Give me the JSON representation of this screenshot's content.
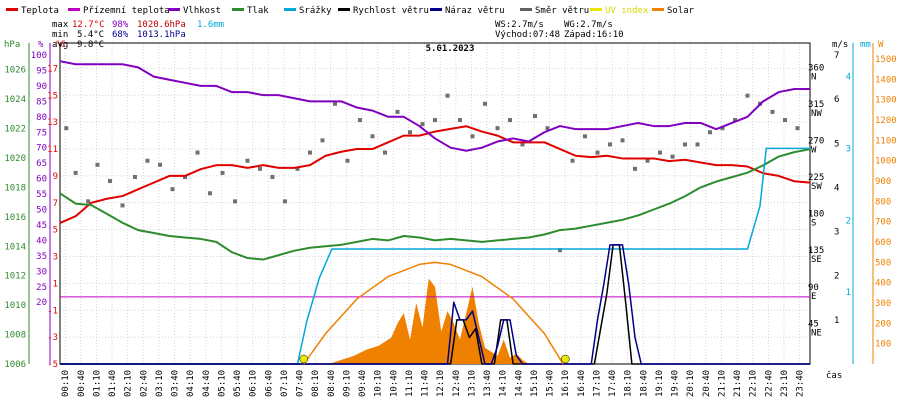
{
  "chart_data": {
    "type": "line",
    "title": "5.01.2023",
    "xlabel": "čas",
    "legend_position": "top",
    "grid": true,
    "legend": [
      {
        "name": "Teplota",
        "color": "#e00000"
      },
      {
        "name": "Přízemní teplota",
        "color": "#c000c0"
      },
      {
        "name": "Vlhkost",
        "color": "#8000c0"
      },
      {
        "name": "Tlak",
        "color": "#2e8b2e"
      },
      {
        "name": "Srážky",
        "color": "#00a8d8"
      },
      {
        "name": "Rychlost větru",
        "color": "#000000"
      },
      {
        "name": "Náraz větru",
        "color": "#00008b"
      },
      {
        "name": "Směr větru",
        "color": "#606060"
      },
      {
        "name": "UV index",
        "color": "#e8e800"
      },
      {
        "name": "Solar",
        "color": "#f08000"
      }
    ],
    "stats": {
      "max_label": "max",
      "min_label": "min",
      "avg_label": "avg",
      "max_temp": "12.7°C",
      "max_hum": "98%",
      "max_press": "1020.6hPa",
      "max_rain": "1.6mm",
      "min_temp": "5.4°C",
      "min_hum": "68%",
      "min_press": "1013.1hPa",
      "avg_temp": "9.8°C"
    },
    "wind_info": {
      "ws": "WS:2.7m/s",
      "wg": "WG:2.7m/s",
      "sunrise": "Východ:07:48",
      "sunset": "Západ:16:10"
    },
    "axes": {
      "pressure": {
        "unit": "hPa",
        "ticks": [
          "1026",
          "1024",
          "1022",
          "1020",
          "1018",
          "1016",
          "1014",
          "1012",
          "1010",
          "1008",
          "1006"
        ],
        "range": [
          1006,
          1027
        ]
      },
      "humidity": {
        "unit": "%",
        "ticks": [
          "100",
          "95",
          "90",
          "85",
          "80",
          "75",
          "70",
          "65",
          "60",
          "55",
          "50",
          "45",
          "40",
          "35",
          "30",
          "25",
          "20"
        ],
        "range": [
          0,
          100
        ]
      },
      "temperature": {
        "unit": "°C",
        "ticks": [
          "17",
          "15",
          "13",
          "11",
          "9",
          "7",
          "5",
          "3",
          "1",
          "-1",
          "-3",
          "-5"
        ],
        "range": [
          -5,
          18
        ]
      },
      "wind_dir": {
        "unit": "",
        "ticks": [
          "360",
          "315",
          "270",
          "225",
          "180",
          "135",
          "90",
          "45"
        ],
        "labels": [
          "N",
          "NW",
          "W",
          "SW",
          "S",
          "SE",
          "E",
          "NE"
        ],
        "range": [
          0,
          380
        ]
      },
      "wind_speed": {
        "unit": "m/s",
        "ticks": [
          "7",
          "6",
          "5",
          "4",
          "3",
          "2",
          "1"
        ],
        "range": [
          0,
          7
        ]
      },
      "rain": {
        "unit": "mm",
        "ticks": [
          "4",
          "3",
          "2",
          "1"
        ],
        "range": [
          0,
          4.3
        ]
      },
      "solar": {
        "unit": "W",
        "ticks": [
          "1500",
          "1400",
          "1300",
          "1200",
          "1100",
          "1000",
          "900",
          "800",
          "700",
          "600",
          "500",
          "400",
          "300",
          "200",
          "100"
        ],
        "range": [
          0,
          1520
        ]
      }
    },
    "x_ticks": [
      "00:10",
      "00:40",
      "01:10",
      "01:40",
      "02:10",
      "02:40",
      "03:10",
      "03:40",
      "04:10",
      "04:40",
      "05:10",
      "05:40",
      "06:10",
      "06:40",
      "07:10",
      "07:40",
      "08:10",
      "08:40",
      "09:10",
      "09:40",
      "10:10",
      "10:40",
      "11:10",
      "11:40",
      "12:10",
      "12:40",
      "13:10",
      "13:40",
      "14:10",
      "14:40",
      "15:10",
      "15:40",
      "16:10",
      "16:40",
      "17:10",
      "17:40",
      "18:10",
      "18:40",
      "19:10",
      "19:40",
      "20:10",
      "20:40",
      "21:10",
      "21:40",
      "22:10",
      "22:40",
      "23:10",
      "23:40"
    ],
    "x_range_hours": [
      0,
      24
    ],
    "series": [
      {
        "name": "Teplota",
        "axis": "temperature",
        "color": "#e00000",
        "x": [
          0,
          0.5,
          1,
          1.5,
          2,
          2.5,
          3,
          3.5,
          4,
          4.5,
          5,
          5.5,
          6,
          6.5,
          7,
          7.5,
          8,
          8.5,
          9,
          9.5,
          10,
          10.5,
          11,
          11.5,
          12,
          12.5,
          13,
          13.5,
          14,
          14.5,
          15,
          15.5,
          16,
          16.5,
          17,
          17.5,
          18,
          18.5,
          19,
          19.5,
          20,
          20.5,
          21,
          21.5,
          22,
          22.5,
          23,
          23.5,
          24
        ],
        "values": [
          5.5,
          6,
          7,
          7.3,
          7.5,
          8,
          8.5,
          9,
          9,
          9.5,
          9.8,
          9.8,
          9.6,
          9.8,
          9.6,
          9.6,
          9.8,
          10.5,
          10.8,
          11,
          11,
          11.5,
          12,
          12,
          12.3,
          12.5,
          12.7,
          12.3,
          12,
          11.5,
          11.5,
          11.5,
          11,
          10.5,
          10.4,
          10.5,
          10.3,
          10.3,
          10.3,
          10.1,
          10.2,
          10,
          9.8,
          9.8,
          9.7,
          9.2,
          9.0,
          8.6,
          8.5
        ]
      },
      {
        "name": "Vlhkost",
        "axis": "humidity",
        "color": "#8000c0",
        "x": [
          0,
          0.5,
          1,
          1.5,
          2,
          2.5,
          3,
          3.5,
          4,
          4.5,
          5,
          5.5,
          6,
          6.5,
          7,
          7.5,
          8,
          8.5,
          9,
          9.5,
          10,
          10.5,
          11,
          11.5,
          12,
          12.5,
          13,
          13.5,
          14,
          14.5,
          15,
          15.5,
          16,
          16.5,
          17,
          17.5,
          18,
          18.5,
          19,
          19.5,
          20,
          20.5,
          21,
          21.5,
          22,
          22.5,
          23,
          23.5,
          24
        ],
        "values": [
          98,
          97,
          97,
          97,
          97,
          96,
          93,
          92,
          91,
          90,
          90,
          88,
          88,
          87,
          87,
          86,
          85,
          85,
          85,
          83,
          82,
          80,
          80,
          77,
          73,
          70,
          69,
          70,
          72,
          73,
          72,
          75,
          77,
          76,
          76,
          76,
          77,
          78,
          77,
          77,
          78,
          78,
          76,
          78,
          80,
          85,
          88,
          89,
          89
        ]
      },
      {
        "name": "Tlak",
        "axis": "pressure",
        "color": "#2e8b2e",
        "x": [
          0,
          0.5,
          1,
          1.5,
          2,
          2.5,
          3,
          3.5,
          4,
          4.5,
          5,
          5.5,
          6,
          6.5,
          7,
          7.5,
          8,
          8.5,
          9,
          9.5,
          10,
          10.5,
          11,
          11.5,
          12,
          12.5,
          13,
          13.5,
          14,
          14.5,
          15,
          15.5,
          16,
          16.5,
          17,
          17.5,
          18,
          18.5,
          19,
          19.5,
          20,
          20.5,
          21,
          21.5,
          22,
          22.5,
          23,
          23.5,
          24
        ],
        "values": [
          1017.6,
          1016.9,
          1016.8,
          1016.2,
          1015.6,
          1015.1,
          1014.9,
          1014.7,
          1014.6,
          1014.5,
          1014.3,
          1013.6,
          1013.2,
          1013.1,
          1013.4,
          1013.7,
          1013.9,
          1014.0,
          1014.1,
          1014.3,
          1014.5,
          1014.4,
          1014.7,
          1014.6,
          1014.4,
          1014.5,
          1014.4,
          1014.3,
          1014.4,
          1014.5,
          1014.6,
          1014.8,
          1015.1,
          1015.2,
          1015.4,
          1015.6,
          1015.8,
          1016.1,
          1016.5,
          1016.9,
          1017.4,
          1018.0,
          1018.4,
          1018.7,
          1019.0,
          1019.5,
          1020.1,
          1020.4,
          1020.6
        ]
      },
      {
        "name": "Srážky",
        "axis": "rain",
        "color": "#00a8d8",
        "x": [
          0,
          7.6,
          7.9,
          8.3,
          8.7,
          9.0,
          22.0,
          22.4,
          22.6,
          23.0,
          24
        ],
        "values": [
          0,
          0,
          0.6,
          1.2,
          1.6,
          1.6,
          1.6,
          2.2,
          3.0,
          3.0,
          3.0
        ]
      },
      {
        "name": "Rychlost větru",
        "axis": "wind_speed",
        "color": "#000000",
        "x": [
          0,
          12.5,
          12.7,
          12.9,
          13.1,
          13.3,
          13.5,
          13.7,
          13.9,
          14.1,
          14.3,
          14.5,
          14.7,
          14.9,
          17.1,
          17.3,
          17.5,
          17.7,
          17.9,
          18.1,
          18.3,
          18.5,
          24
        ],
        "values": [
          0,
          0,
          1,
          1,
          0.6,
          0.8,
          0,
          0,
          0,
          1,
          1,
          0,
          0,
          0,
          0,
          0.8,
          1.6,
          2.7,
          2.7,
          1.4,
          0,
          0,
          0
        ]
      },
      {
        "name": "Náraz větru",
        "axis": "wind_speed",
        "color": "#00008b",
        "x": [
          0,
          12.4,
          12.6,
          12.8,
          13.0,
          13.2,
          13.4,
          13.6,
          13.8,
          14.0,
          14.2,
          14.4,
          14.6,
          14.8,
          17.0,
          17.2,
          17.4,
          17.6,
          17.8,
          18.0,
          18.2,
          18.4,
          18.6,
          24
        ],
        "values": [
          0,
          0,
          1.4,
          1.0,
          1.0,
          1.2,
          0.6,
          0,
          0,
          0.4,
          1.0,
          1.0,
          0.2,
          0,
          0,
          1.0,
          1.8,
          2.7,
          2.7,
          2.7,
          1.8,
          0.6,
          0,
          0
        ]
      },
      {
        "name": "Solar",
        "axis": "solar",
        "color": "#f08000",
        "x": [
          7.8,
          8.5,
          9.5,
          10.5,
          11.5,
          12.0,
          12.5,
          13.5,
          14.5,
          15.5,
          16.1
        ],
        "values": [
          0,
          150,
          320,
          430,
          490,
          500,
          490,
          430,
          320,
          150,
          0
        ]
      }
    ],
    "solar_measured": {
      "x": [
        8.6,
        9.0,
        9.4,
        9.8,
        10.2,
        10.6,
        10.8,
        11.0,
        11.2,
        11.4,
        11.6,
        11.8,
        12.0,
        12.2,
        12.4,
        12.6,
        12.8,
        13.0,
        13.2,
        13.4,
        13.6,
        13.8,
        14.0,
        14.2,
        14.4,
        14.6,
        14.8,
        15.0
      ],
      "values": [
        0,
        20,
        40,
        70,
        90,
        130,
        200,
        250,
        120,
        300,
        180,
        420,
        380,
        160,
        260,
        200,
        120,
        250,
        380,
        200,
        80,
        60,
        40,
        120,
        30,
        50,
        20,
        0
      ]
    },
    "wind_direction_points": {
      "x": [
        0.2,
        0.5,
        0.9,
        1.2,
        1.6,
        2.0,
        2.4,
        2.8,
        3.2,
        3.6,
        4.0,
        4.4,
        4.8,
        5.2,
        5.6,
        6.0,
        6.4,
        6.8,
        7.2,
        7.6,
        8.0,
        8.4,
        8.8,
        9.2,
        9.6,
        10.0,
        10.4,
        10.8,
        11.2,
        11.6,
        12.0,
        12.4,
        12.8,
        13.2,
        13.6,
        14.0,
        14.4,
        14.8,
        15.2,
        15.6,
        16.0,
        16.4,
        16.8,
        17.2,
        17.6,
        18.0,
        18.4,
        18.8,
        19.2,
        19.6,
        20.0,
        20.4,
        20.8,
        21.2,
        21.6,
        22.0,
        22.4,
        22.8,
        23.2,
        23.6
      ],
      "values": [
        290,
        235,
        200,
        245,
        225,
        195,
        230,
        250,
        245,
        215,
        230,
        260,
        210,
        235,
        200,
        250,
        240,
        230,
        200,
        240,
        260,
        275,
        320,
        250,
        300,
        280,
        260,
        310,
        285,
        295,
        300,
        330,
        300,
        280,
        320,
        290,
        300,
        270,
        305,
        290,
        140,
        250,
        280,
        260,
        270,
        275,
        240,
        250,
        260,
        255,
        270,
        270,
        285,
        290,
        300,
        330,
        320,
        310,
        300,
        290
      ]
    },
    "markers": [
      {
        "name": "Východ",
        "time": 7.8,
        "color": "#e8e800"
      },
      {
        "name": "Západ",
        "time": 16.17,
        "color": "#e8e800"
      }
    ],
    "reference_lines": [
      {
        "axis": "temperature",
        "value": 0,
        "color": "#c000c0"
      }
    ]
  }
}
